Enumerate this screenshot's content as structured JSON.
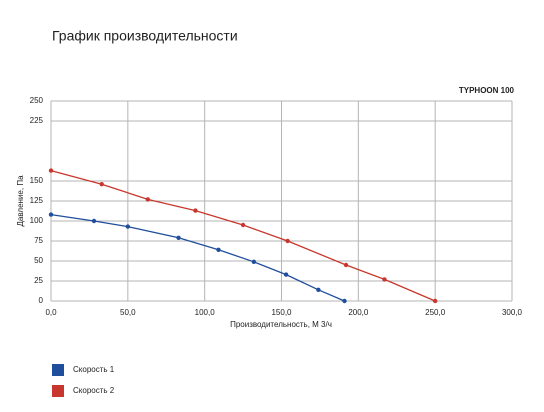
{
  "chart_data": {
    "type": "line",
    "title": "График производительности",
    "model_label": "TYPHOON 100",
    "x_label": "Производительность, М 3/ч",
    "y_label": "Давление, Па",
    "xlim": [
      0,
      300
    ],
    "xticks": [
      {
        "value": 0,
        "label": "0,0"
      },
      {
        "value": 50,
        "label": "50,0"
      },
      {
        "value": 100,
        "label": "100,0"
      },
      {
        "value": 150,
        "label": "150,0"
      },
      {
        "value": 200,
        "label": "200,0"
      },
      {
        "value": 250,
        "label": "250,0"
      },
      {
        "value": 300,
        "label": "300,0"
      }
    ],
    "ylim": [
      0,
      250
    ],
    "yticks": [
      0,
      25,
      50,
      75,
      100,
      125,
      150,
      225,
      250
    ],
    "grid": true,
    "series": [
      {
        "name": "Скорость 1",
        "color": "#1f4e9c",
        "x": [
          0,
          28,
          50,
          83,
          109,
          132,
          153,
          174,
          191
        ],
        "values": [
          108,
          100,
          93,
          79,
          64,
          49,
          33,
          14,
          0
        ]
      },
      {
        "name": "Скорость 2",
        "color": "#c8372d",
        "x": [
          0,
          33,
          63,
          94,
          125,
          154,
          192,
          217,
          250
        ],
        "values": [
          163,
          146,
          127,
          113,
          95,
          75,
          45,
          27,
          0
        ]
      }
    ]
  }
}
